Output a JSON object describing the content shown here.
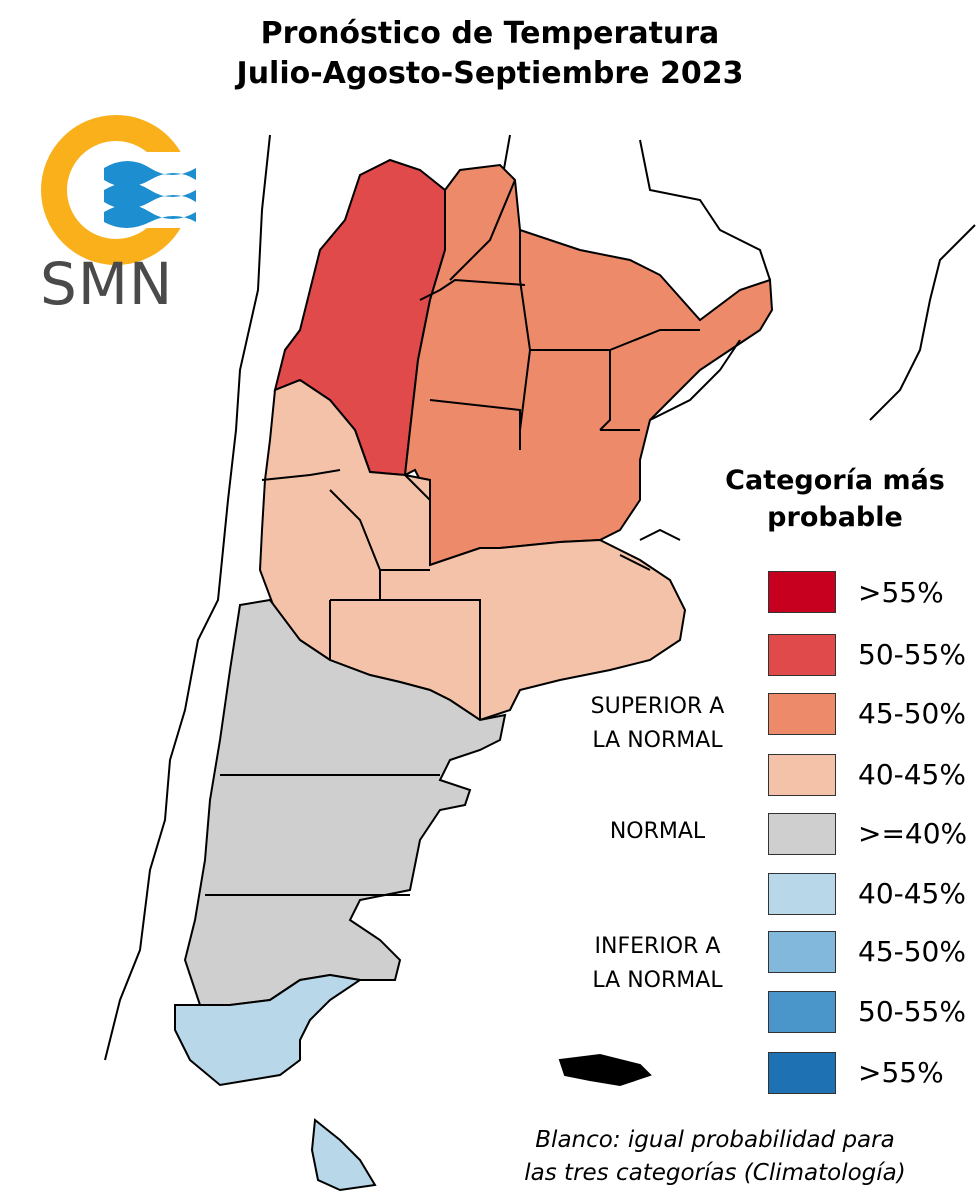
{
  "title": {
    "line1": "Pronóstico de Temperatura",
    "line2": "Julio-Agosto-Septiembre 2023"
  },
  "logo": {
    "text": "SMN",
    "ring_color": "#f9b01b",
    "wave_color": "#1d8fd1"
  },
  "legend": {
    "title_line1": "Categoría más",
    "title_line2": "probable",
    "groups": {
      "superior": [
        "SUPERIOR A",
        "LA NORMAL"
      ],
      "normal": [
        "NORMAL"
      ],
      "inferior": [
        "INFERIOR A",
        "LA NORMAL"
      ]
    },
    "items": [
      {
        "label": ">55%",
        "color": "#c8001f"
      },
      {
        "label": "50-55%",
        "color": "#e04a4a"
      },
      {
        "label": "45-50%",
        "color": "#ec8a6a"
      },
      {
        "label": "40-45%",
        "color": "#f4c2a8"
      },
      {
        "label": ">=40%",
        "color": "#cfcfcf"
      },
      {
        "label": "40-45%",
        "color": "#b8d7e9"
      },
      {
        "label": "45-50%",
        "color": "#82b8db"
      },
      {
        "label": "50-55%",
        "color": "#4a95c9"
      },
      {
        "label": ">55%",
        "color": "#1e72b4"
      }
    ]
  },
  "footnote": {
    "line1": "Blanco: igual probabilidad para",
    "line2": "las tres categorías (Climatología)"
  }
}
